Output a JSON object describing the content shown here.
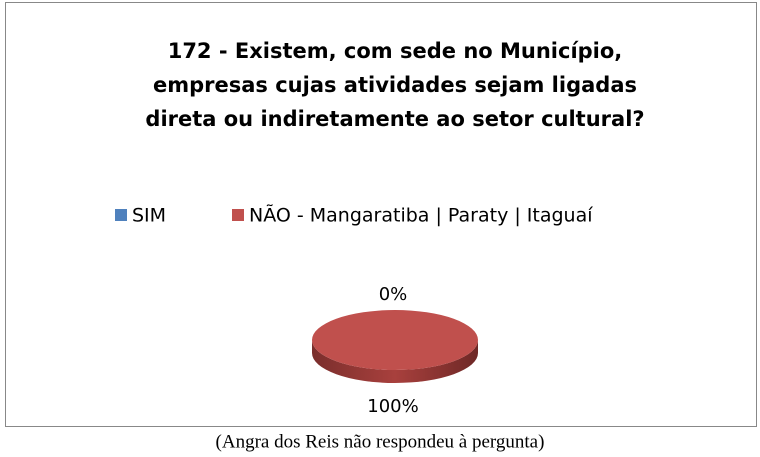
{
  "chart_data": {
    "type": "pie",
    "title": [
      "172 - Existem, com sede no Município,",
      "empresas cujas atividades sejam ligadas",
      "direta ou indiretamente ao setor cultural?"
    ],
    "categories": [
      "SIM",
      "NÃO - Mangaratiba | Paraty | Itaguaí"
    ],
    "values": [
      0,
      100
    ],
    "value_labels": [
      "0%",
      "100%"
    ],
    "colors": [
      "#4f81bd",
      "#c0504d"
    ],
    "legend": "top"
  },
  "caption": "(Angra dos Reis não respondeu à pergunta)"
}
